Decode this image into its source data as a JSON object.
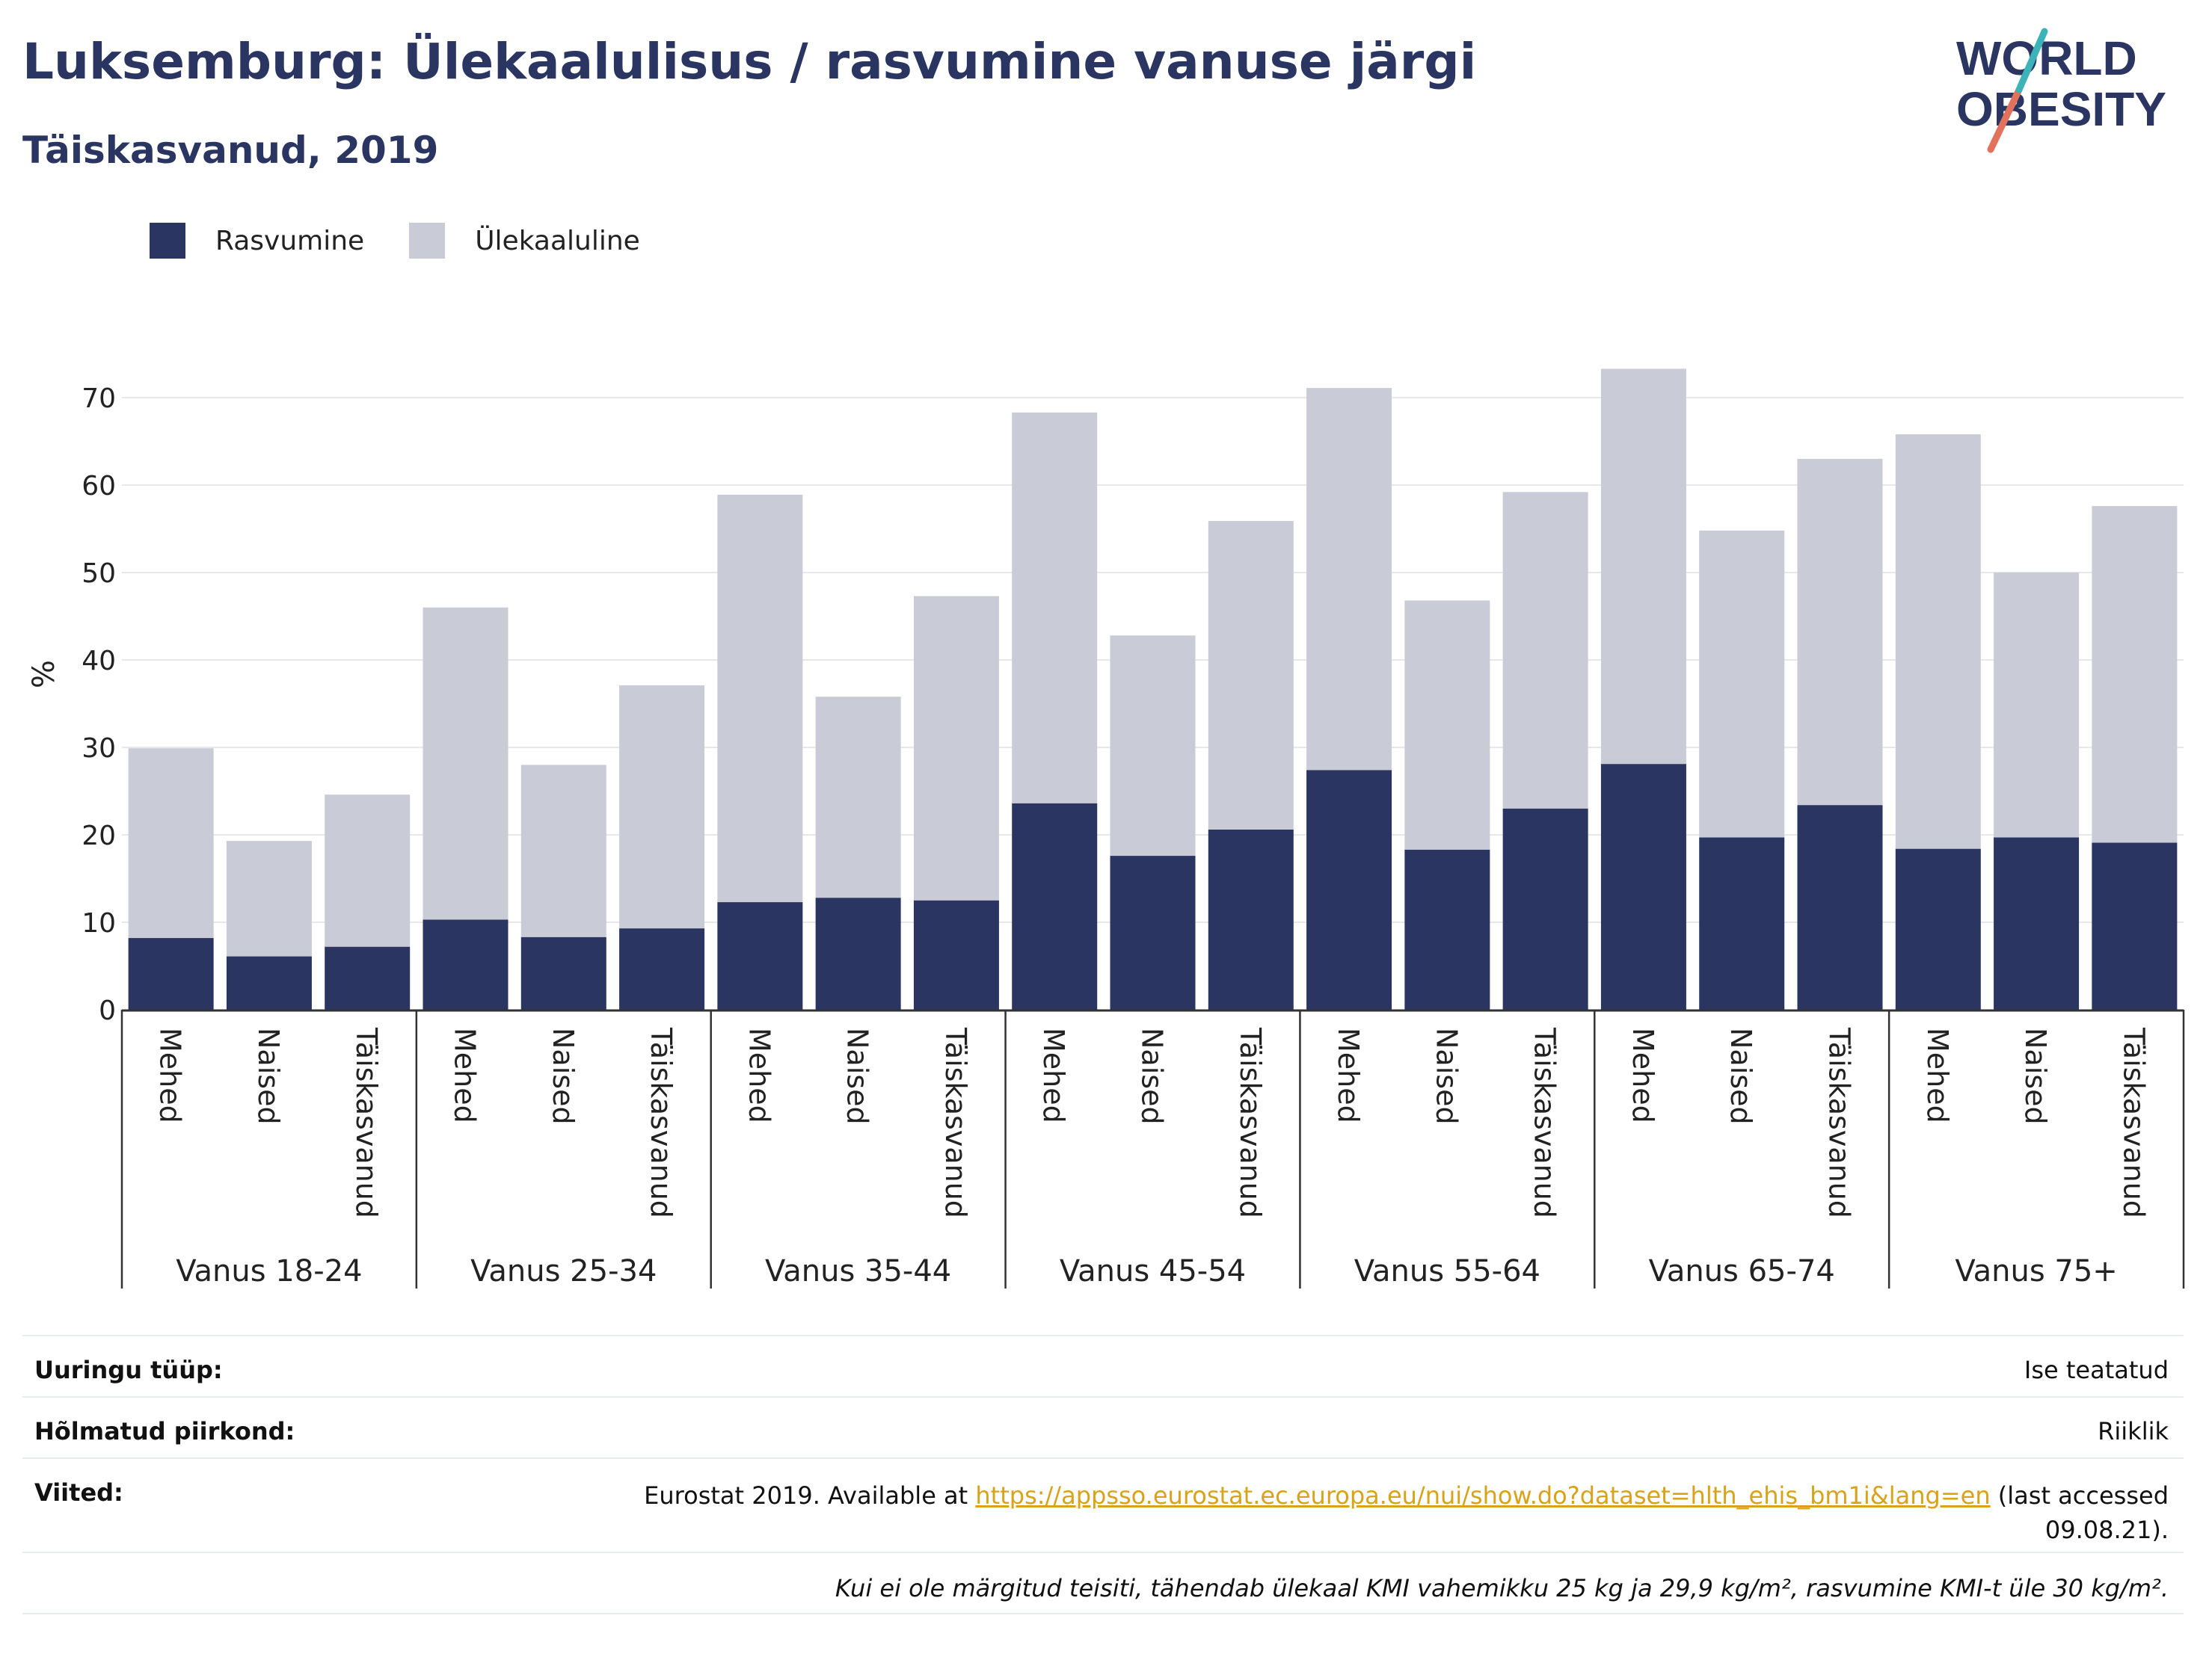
{
  "title": "Luksemburg: Ülekaalulisus / rasvumine vanuse järgi",
  "subtitle": "Täiskasvanud, 2019",
  "logo": {
    "line1": "WORLD",
    "line2": "OBESITY"
  },
  "colors": {
    "obesity": "#2a3561",
    "overweight": "#c9cbd6",
    "title": "#2a3561"
  },
  "chart_data": {
    "type": "bar",
    "stacked": true,
    "ylabel": "%",
    "ylim": [
      0,
      75
    ],
    "yticks": [
      0,
      10,
      20,
      30,
      40,
      50,
      60,
      70
    ],
    "grid": true,
    "legend_position": "top-left",
    "groups": [
      {
        "label": "Vanus 18-24",
        "categories": [
          "Mehed",
          "Naised",
          "Täiskasvanud"
        ]
      },
      {
        "label": "Vanus 25-34",
        "categories": [
          "Mehed",
          "Naised",
          "Täiskasvanud"
        ]
      },
      {
        "label": "Vanus 35-44",
        "categories": [
          "Mehed",
          "Naised",
          "Täiskasvanud"
        ]
      },
      {
        "label": "Vanus 45-54",
        "categories": [
          "Mehed",
          "Naised",
          "Täiskasvanud"
        ]
      },
      {
        "label": "Vanus 55-64",
        "categories": [
          "Mehed",
          "Naised",
          "Täiskasvanud"
        ]
      },
      {
        "label": "Vanus 65-74",
        "categories": [
          "Mehed",
          "Naised",
          "Täiskasvanud"
        ]
      },
      {
        "label": "Vanus 75+",
        "categories": [
          "Mehed",
          "Naised",
          "Täiskasvanud"
        ]
      }
    ],
    "series": [
      {
        "name": "Rasvumine",
        "color": "#2a3561",
        "values": [
          8.2,
          6.1,
          7.2,
          10.3,
          8.3,
          9.3,
          12.3,
          12.8,
          12.5,
          23.6,
          17.6,
          20.6,
          27.4,
          18.3,
          23.0,
          28.1,
          19.7,
          23.4,
          18.4,
          19.7,
          19.1
        ]
      },
      {
        "name": "Ülekaaluline",
        "color": "#c9cbd6",
        "values": [
          21.7,
          13.2,
          17.4,
          35.7,
          19.7,
          27.8,
          46.6,
          23.0,
          34.8,
          44.7,
          25.2,
          35.3,
          43.7,
          28.5,
          36.2,
          45.2,
          35.1,
          39.6,
          47.4,
          30.3,
          38.5
        ]
      }
    ]
  },
  "info": {
    "survey_type_label": "Uuringu tüüp:",
    "survey_type_value": "Ise teatatud",
    "region_label": "Hõlmatud piirkond:",
    "region_value": "Riiklik",
    "refs_label": "Viited:",
    "refs_prefix": "Eurostat 2019. Available at ",
    "refs_link": "https://appsso.eurostat.ec.europa.eu/nui/show.do?dataset=hlth_ehis_bm1i&lang=en",
    "refs_suffix": " (last accessed",
    "refs_date": "09.08.21).",
    "note": "Kui ei ole märgitud teisiti, tähendab ülekaal KMI vahemikku 25 kg ja 29,9 kg/m², rasvumine KMI-t üle 30 kg/m²."
  }
}
